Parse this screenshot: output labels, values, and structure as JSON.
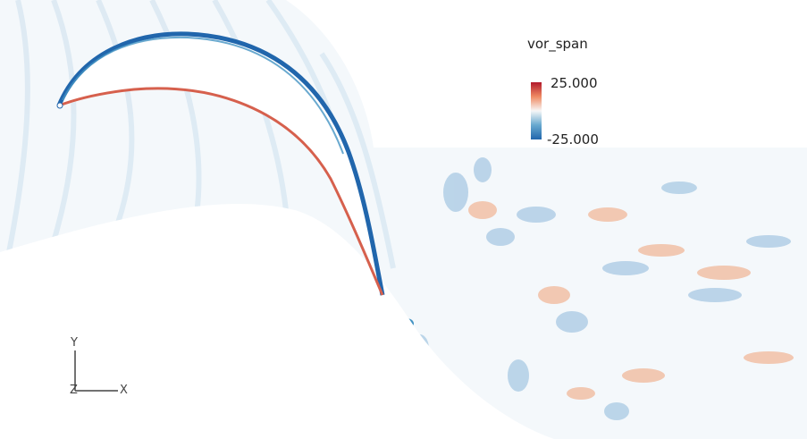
{
  "legend": {
    "title": "vor_span",
    "max_label": "25.000",
    "min_label": "-25.000",
    "max_value": 25.0,
    "min_value": -25.0,
    "colors": {
      "high": "#b2182b",
      "mid": "#f7f7f7",
      "low": "#2166ac"
    }
  },
  "axes": {
    "y_label": "Y",
    "x_label": "X",
    "z_label": "Z"
  }
}
